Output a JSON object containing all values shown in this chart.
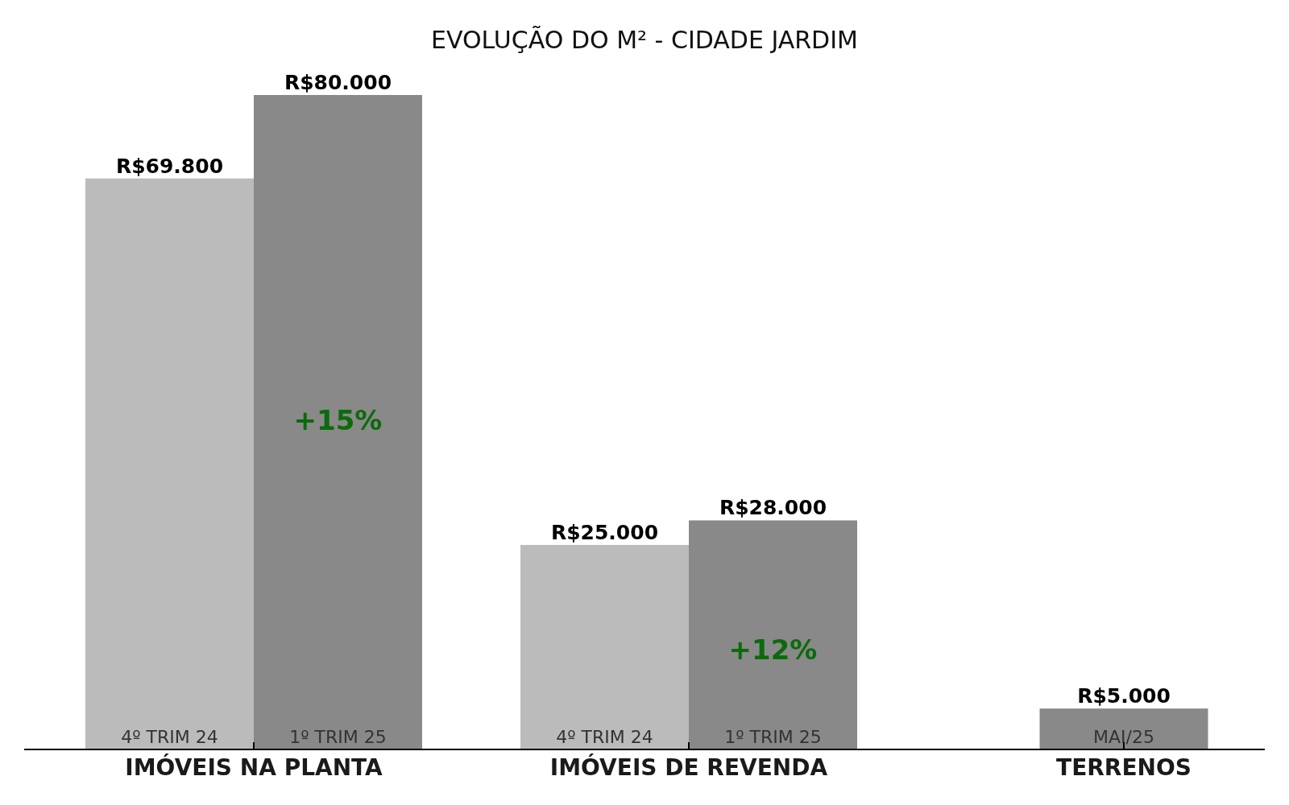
{
  "chart_data": {
    "type": "bar",
    "title": "EVOLUÇÃO DO M² - CIDADE JARDIM",
    "categories": [
      "IMÓVEIS NA PLANTA",
      "IMÓVEIS DE REVENDA",
      "TERRENOS"
    ],
    "series": [
      {
        "name": "4º TRIM 24",
        "color": "#bbbbbb",
        "values": [
          69800,
          25000,
          null
        ],
        "value_labels": [
          "R$69.800",
          "R$25.000",
          null
        ]
      },
      {
        "name": "1º TRIM 25",
        "color": "#898989",
        "values": [
          80000,
          28000,
          null
        ],
        "value_labels": [
          "R$80.000",
          "R$28.000",
          null
        ]
      },
      {
        "name": "MAI/25",
        "color": "#898989",
        "values": [
          null,
          null,
          5000
        ],
        "value_labels": [
          null,
          null,
          "R$5.000"
        ]
      }
    ],
    "annotations": [
      {
        "text": "+15%",
        "x": "IMÓVEIS NA PLANTA",
        "y": 40000
      },
      {
        "text": "+12%",
        "x": "IMÓVEIS DE REVENDA",
        "y": 12000
      }
    ],
    "tick_labels": "x"
  }
}
